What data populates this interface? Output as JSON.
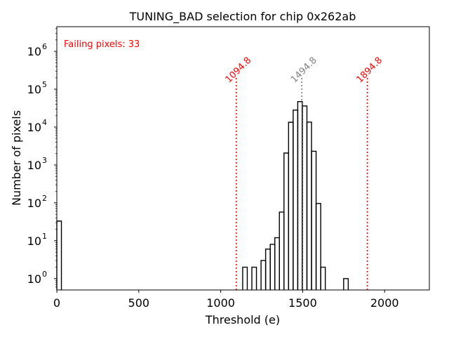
{
  "chart_data": {
    "type": "bar",
    "subtype": "step-histogram",
    "title": "TUNING_BAD selection for chip 0x262ab",
    "xlabel": "Threshold (e)",
    "ylabel": "Number of pixels",
    "xlim": [
      0,
      2273
    ],
    "ylim_log10": [
      -0.3,
      6.65
    ],
    "yscale": "log",
    "grid": false,
    "xticks": [
      0,
      500,
      1000,
      1500,
      2000
    ],
    "xtick_labels": [
      "0",
      "500",
      "1000",
      "1500",
      "2000"
    ],
    "yticks_log10": [
      0,
      1,
      2,
      3,
      4,
      5,
      6
    ],
    "ytick_labels": [
      "10",
      "10",
      "10",
      "10",
      "10",
      "10",
      "10"
    ],
    "ytick_exponents": [
      "0",
      "1",
      "2",
      "3",
      "4",
      "5",
      "6"
    ],
    "bin_width": 28,
    "bins": [
      {
        "x0": 0,
        "count": 33
      },
      {
        "x0": 1134,
        "count": 2
      },
      {
        "x0": 1190,
        "count": 2
      },
      {
        "x0": 1246,
        "count": 3
      },
      {
        "x0": 1274,
        "count": 6
      },
      {
        "x0": 1302,
        "count": 8
      },
      {
        "x0": 1330,
        "count": 12
      },
      {
        "x0": 1358,
        "count": 57
      },
      {
        "x0": 1386,
        "count": 2060
      },
      {
        "x0": 1414,
        "count": 13400
      },
      {
        "x0": 1442,
        "count": 28000
      },
      {
        "x0": 1470,
        "count": 47000
      },
      {
        "x0": 1498,
        "count": 36000
      },
      {
        "x0": 1526,
        "count": 13500
      },
      {
        "x0": 1554,
        "count": 2300
      },
      {
        "x0": 1582,
        "count": 96
      },
      {
        "x0": 1610,
        "count": 2
      },
      {
        "x0": 1750,
        "count": 1
      }
    ],
    "vlines": [
      {
        "x": 1094.8,
        "label": "1094.8",
        "color": "#ff0000"
      },
      {
        "x": 1494.8,
        "label": "1494.8",
        "color": "#808080"
      },
      {
        "x": 1894.8,
        "label": "1894.8",
        "color": "#ff0000"
      }
    ],
    "vline_top_value": 200000,
    "annotations": [
      {
        "text": "Failing pixels: 33",
        "color": "#ff0000",
        "position": "top-left"
      }
    ]
  }
}
